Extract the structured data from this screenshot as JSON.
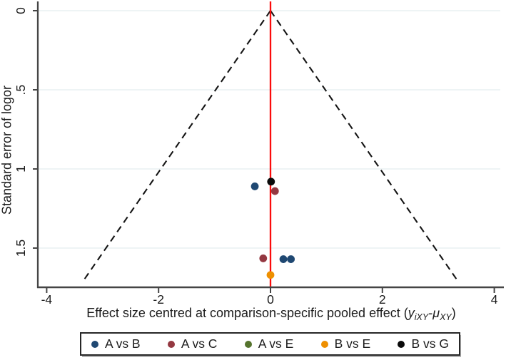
{
  "figure": {
    "ylabel": "Standard error of logor",
    "xlabel_main": "Effect size centred at comparison-specific pooled effect (",
    "xlabel_var1": "y",
    "xlabel_sub1": "iXY",
    "xlabel_dash": "-",
    "xlabel_var2": "μ",
    "xlabel_sub2": "XY",
    "xlabel_close": ")"
  },
  "chart_data": {
    "type": "scatter",
    "subtype": "comparison-adjusted funnel plot",
    "title": "",
    "xlabel": "Effect size centred at comparison-specific pooled effect (yiXY-μXY)",
    "ylabel": "Standard error of logor",
    "xlim": [
      -4.16,
      4.17
    ],
    "ylim_se": [
      -0.06,
      1.75
    ],
    "y_axis_inverted": true,
    "grid": true,
    "gridline_color": "#e9f0f2",
    "axis_color": "#454545",
    "tick_label_color": "#1b1b1b",
    "x_ticks": [
      {
        "v": -4,
        "label": "-4"
      },
      {
        "v": -2,
        "label": "-2"
      },
      {
        "v": 0,
        "label": "0"
      },
      {
        "v": 2,
        "label": "2"
      },
      {
        "v": 4,
        "label": "4"
      }
    ],
    "y_ticks": [
      {
        "v": 0,
        "label": "0"
      },
      {
        "v": 0.5,
        "label": ".5"
      },
      {
        "v": 1,
        "label": "1"
      },
      {
        "v": 1.5,
        "label": "1.5"
      }
    ],
    "ref_line": {
      "x": 0,
      "color": "#fb0b0b"
    },
    "funnel": {
      "center_x": 0,
      "slope": 1.96,
      "se_end": 1.7,
      "style": "dashed",
      "color": "#141414"
    },
    "series": [
      {
        "name": "A vs B",
        "color": "#1f4872",
        "points": [
          {
            "x": -0.28,
            "se": 1.11
          },
          {
            "x": 0.23,
            "se": 1.57
          },
          {
            "x": 0.365,
            "se": 1.57
          }
        ]
      },
      {
        "name": "A vs C",
        "color": "#943841",
        "points": [
          {
            "x": 0.08,
            "se": 1.14
          },
          {
            "x": -0.13,
            "se": 1.565
          }
        ]
      },
      {
        "name": "A vs E",
        "color": "#55732d",
        "points": []
      },
      {
        "name": "B vs E",
        "color": "#ee8f00",
        "points": [
          {
            "x": 0.0,
            "se": 1.67
          }
        ]
      },
      {
        "name": "B vs G",
        "color": "#0a0a0a",
        "points": [
          {
            "x": 0.01,
            "se": 1.08
          }
        ]
      }
    ],
    "legend_position": "bottom-center"
  }
}
